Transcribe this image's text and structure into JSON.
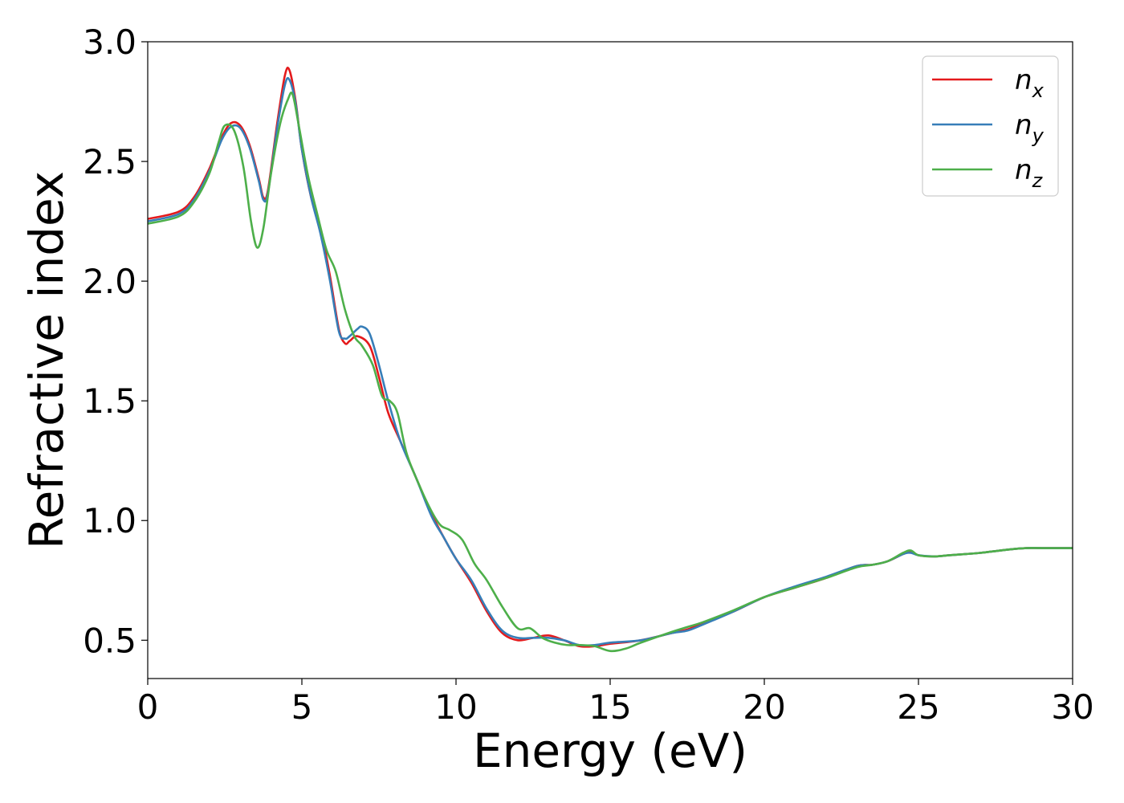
{
  "chart_data": {
    "type": "line",
    "title": "",
    "xlabel": "Energy (eV)",
    "ylabel": "Refractive index",
    "xlim": [
      0,
      30
    ],
    "ylim": [
      0.34,
      3.0
    ],
    "xticks": [
      0,
      5,
      10,
      15,
      20,
      25,
      30
    ],
    "xtick_labels": [
      "0",
      "5",
      "10",
      "15",
      "20",
      "25",
      "30"
    ],
    "yticks": [
      0.5,
      1.0,
      1.5,
      2.0,
      2.5,
      3.0
    ],
    "ytick_labels": [
      "0.5",
      "1.0",
      "1.5",
      "2.0",
      "2.5",
      "3.0"
    ],
    "grid": false,
    "legend_position": "top-right",
    "series": [
      {
        "name": "n",
        "subscript": "x",
        "color": "#e41a1c",
        "x": [
          0,
          1,
          1.5,
          2,
          2.4,
          2.7,
          3.0,
          3.3,
          3.6,
          3.75,
          3.9,
          4.2,
          4.45,
          4.6,
          4.8,
          5.0,
          5.3,
          5.6,
          5.9,
          6.2,
          6.4,
          6.55,
          6.8,
          7.2,
          7.5,
          7.8,
          8.2,
          8.7,
          9.2,
          9.6,
          10.0,
          10.5,
          11.0,
          11.5,
          12.0,
          12.5,
          13.0,
          13.5,
          14.0,
          14.5,
          15.0,
          16.0,
          17.0,
          17.5,
          18.0,
          19.0,
          20.0,
          21.0,
          22.0,
          23.0,
          23.5,
          24.0,
          24.5,
          24.75,
          25.0,
          25.5,
          26.0,
          27.0,
          28.0,
          28.5,
          29.0,
          30.0
        ],
        "y": [
          2.26,
          2.29,
          2.35,
          2.47,
          2.6,
          2.66,
          2.65,
          2.57,
          2.43,
          2.35,
          2.38,
          2.66,
          2.86,
          2.88,
          2.75,
          2.55,
          2.35,
          2.22,
          2.03,
          1.8,
          1.74,
          1.75,
          1.77,
          1.73,
          1.6,
          1.45,
          1.33,
          1.18,
          1.03,
          0.93,
          0.84,
          0.74,
          0.62,
          0.53,
          0.5,
          0.51,
          0.52,
          0.5,
          0.475,
          0.475,
          0.485,
          0.5,
          0.53,
          0.545,
          0.57,
          0.62,
          0.68,
          0.72,
          0.76,
          0.81,
          0.815,
          0.83,
          0.86,
          0.87,
          0.855,
          0.85,
          0.855,
          0.865,
          0.88,
          0.885,
          0.885,
          0.885
        ]
      },
      {
        "name": "n",
        "subscript": "y",
        "color": "#377eb8",
        "x": [
          0,
          1,
          1.5,
          2,
          2.4,
          2.7,
          3.0,
          3.3,
          3.6,
          3.75,
          3.9,
          4.2,
          4.45,
          4.6,
          4.8,
          5.0,
          5.3,
          5.6,
          5.9,
          6.2,
          6.4,
          6.55,
          6.8,
          6.95,
          7.2,
          7.5,
          7.8,
          8.2,
          8.7,
          9.2,
          9.6,
          10.0,
          10.5,
          11.0,
          11.5,
          12.0,
          12.5,
          13.0,
          13.5,
          14.0,
          14.5,
          15.0,
          16.0,
          17.0,
          17.5,
          18.0,
          19.0,
          20.0,
          21.0,
          22.0,
          23.0,
          23.5,
          24.0,
          24.5,
          24.75,
          25.0,
          25.5,
          26.0,
          27.0,
          28.0,
          28.5,
          29.0,
          30.0
        ],
        "y": [
          2.25,
          2.28,
          2.34,
          2.46,
          2.59,
          2.645,
          2.64,
          2.56,
          2.42,
          2.34,
          2.37,
          2.64,
          2.82,
          2.84,
          2.74,
          2.55,
          2.35,
          2.2,
          2.01,
          1.79,
          1.76,
          1.77,
          1.8,
          1.81,
          1.78,
          1.65,
          1.5,
          1.33,
          1.18,
          1.02,
          0.93,
          0.84,
          0.75,
          0.63,
          0.54,
          0.51,
          0.51,
          0.51,
          0.5,
          0.48,
          0.48,
          0.49,
          0.5,
          0.53,
          0.54,
          0.565,
          0.62,
          0.68,
          0.725,
          0.765,
          0.81,
          0.815,
          0.83,
          0.86,
          0.865,
          0.855,
          0.85,
          0.855,
          0.865,
          0.88,
          0.885,
          0.885,
          0.885
        ]
      },
      {
        "name": "n",
        "subscript": "z",
        "color": "#4daf4a",
        "x": [
          0,
          1,
          1.5,
          2,
          2.3,
          2.5,
          2.8,
          3.1,
          3.35,
          3.55,
          3.75,
          4.0,
          4.3,
          4.55,
          4.7,
          4.9,
          5.2,
          5.5,
          5.8,
          6.1,
          6.4,
          6.7,
          6.95,
          7.3,
          7.6,
          7.85,
          8.1,
          8.4,
          8.8,
          9.2,
          9.5,
          9.8,
          10.2,
          10.6,
          11.0,
          11.5,
          12.0,
          12.4,
          12.8,
          13.2,
          13.6,
          14.0,
          14.5,
          15.0,
          15.5,
          16.0,
          17.0,
          17.5,
          18.0,
          19.0,
          20.0,
          21.0,
          22.0,
          23.0,
          23.5,
          24.0,
          24.5,
          24.75,
          25.0,
          25.5,
          26.0,
          27.0,
          28.0,
          28.5,
          29.0,
          30.0
        ],
        "y": [
          2.24,
          2.27,
          2.33,
          2.45,
          2.58,
          2.65,
          2.63,
          2.48,
          2.25,
          2.14,
          2.22,
          2.45,
          2.66,
          2.76,
          2.78,
          2.65,
          2.44,
          2.28,
          2.13,
          2.04,
          1.88,
          1.77,
          1.73,
          1.65,
          1.52,
          1.5,
          1.45,
          1.28,
          1.15,
          1.04,
          0.98,
          0.96,
          0.92,
          0.82,
          0.75,
          0.64,
          0.55,
          0.55,
          0.51,
          0.49,
          0.48,
          0.48,
          0.475,
          0.455,
          0.465,
          0.49,
          0.535,
          0.555,
          0.575,
          0.625,
          0.68,
          0.72,
          0.76,
          0.805,
          0.815,
          0.83,
          0.865,
          0.875,
          0.855,
          0.85,
          0.855,
          0.865,
          0.88,
          0.885,
          0.885,
          0.885
        ]
      }
    ]
  }
}
